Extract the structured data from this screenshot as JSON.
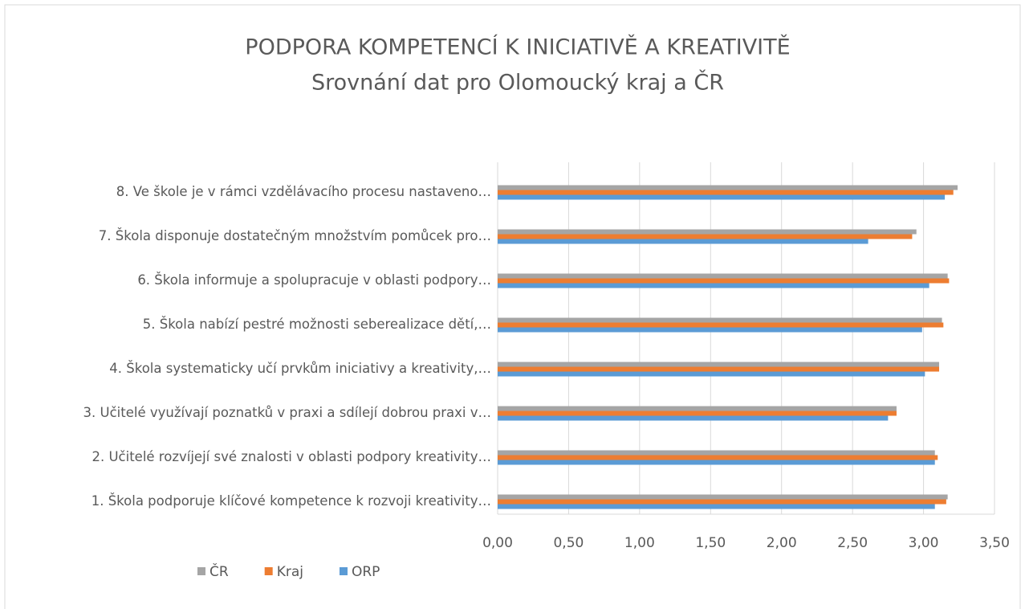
{
  "chart_data": {
    "type": "bar",
    "orientation": "horizontal",
    "title": "PODPORA KOMPETENCÍ K INICIATIVĚ A KREATIVITĚ",
    "subtitle": "Srovnání dat pro Olomoucký kraj a ČR",
    "categories": [
      "1. Škola podporuje klíčové kompetence k rozvoji kreativity…",
      "2. Učitelé rozvíjejí své znalosti v oblasti podpory kreativity…",
      "3. Učitelé využívají poznatků v praxi a sdílejí dobrou praxi v…",
      "4. Škola systematicky učí prvkům iniciativy a kreativity,…",
      "5. Škola nabízí pestré možnosti seberealizace dětí,…",
      "6. Škola informuje a spolupracuje v oblasti podpory…",
      "7. Škola disponuje dostatečným množstvím pomůcek pro…",
      "8. Ve škole je v rámci vzdělávacího procesu nastaveno…"
    ],
    "series": [
      {
        "name": "ČR",
        "color": "#a5a5a5",
        "values": [
          3.17,
          3.08,
          2.81,
          3.11,
          3.13,
          3.17,
          2.95,
          3.24
        ]
      },
      {
        "name": "Kraj",
        "color": "#ed7d31",
        "values": [
          3.16,
          3.1,
          2.81,
          3.11,
          3.14,
          3.18,
          2.92,
          3.21
        ]
      },
      {
        "name": "ORP",
        "color": "#5b9bd5",
        "values": [
          3.08,
          3.08,
          2.75,
          3.01,
          2.99,
          3.04,
          2.61,
          3.15
        ]
      }
    ],
    "xlim": [
      0,
      3.5
    ],
    "xticks": [
      {
        "value": 0,
        "label": "0,00"
      },
      {
        "value": 0.5,
        "label": "0,50"
      },
      {
        "value": 1,
        "label": "1,00"
      },
      {
        "value": 1.5,
        "label": "1,50"
      },
      {
        "value": 2,
        "label": "2,00"
      },
      {
        "value": 2.5,
        "label": "2,50"
      },
      {
        "value": 3,
        "label": "3,00"
      },
      {
        "value": 3.5,
        "label": "3,50"
      }
    ],
    "grid": true,
    "legend": "bottom-left"
  }
}
